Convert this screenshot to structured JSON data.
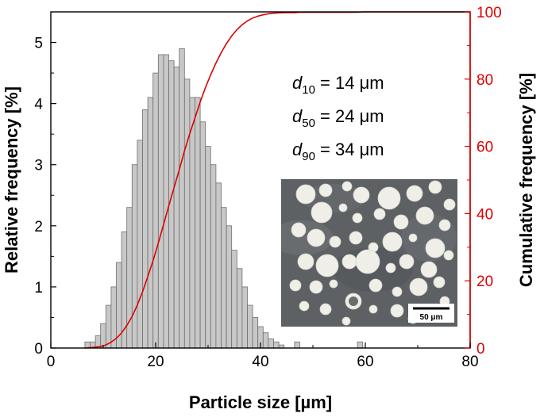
{
  "chart_data": {
    "type": "bar+line",
    "xlabel": "Particle size [µm]",
    "ylabel_left": "Relative frequency [%]",
    "ylabel_right": "Cumulative frequency [%]",
    "xlim": [
      0,
      80
    ],
    "ylim_left": [
      0,
      5.5
    ],
    "ylim_right": [
      0,
      100
    ],
    "x_ticks": [
      0,
      20,
      40,
      60,
      80
    ],
    "y_left_ticks": [
      0,
      1,
      2,
      3,
      4,
      5
    ],
    "y_right_ticks": [
      0,
      20,
      40,
      60,
      80,
      100
    ],
    "bin_width": 1,
    "histogram": {
      "bin_centers": [
        7,
        8,
        9,
        10,
        11,
        12,
        13,
        14,
        15,
        16,
        17,
        18,
        19,
        20,
        21,
        22,
        23,
        24,
        25,
        26,
        27,
        28,
        29,
        30,
        31,
        32,
        33,
        34,
        35,
        36,
        37,
        38,
        39,
        40,
        41,
        42,
        43,
        44,
        45,
        46,
        47,
        48,
        49,
        50,
        51,
        52,
        53,
        54,
        55,
        56,
        57,
        58,
        59
      ],
      "values": [
        0.1,
        0.1,
        0.2,
        0.4,
        0.7,
        1.0,
        1.4,
        1.9,
        2.3,
        3.0,
        3.4,
        3.9,
        4.1,
        4.5,
        4.8,
        4.8,
        4.7,
        4.6,
        4.9,
        4.4,
        4.1,
        4.1,
        3.7,
        3.3,
        3.0,
        2.7,
        2.3,
        2.0,
        1.6,
        1.3,
        1.0,
        0.7,
        0.5,
        0.35,
        0.25,
        0.15,
        0.1,
        0.05,
        0.0,
        0.0,
        0.1,
        0.0,
        0.0,
        0.0,
        0.0,
        0.0,
        0.0,
        0.0,
        0.0,
        0.0,
        0.0,
        0.0,
        0.1
      ]
    },
    "cumulative": {
      "color": "#dd0000"
    },
    "annotations": [
      {
        "symbol": "d",
        "sub": "10",
        "text": " = 14 μm"
      },
      {
        "symbol": "d",
        "sub": "50",
        "text": " = 24 μm"
      },
      {
        "symbol": "d",
        "sub": "90",
        "text": " = 34 μm"
      }
    ],
    "inset": {
      "type": "micrograph",
      "scalebar_label": "50 μm"
    },
    "colors": {
      "bars_fill": "#c8c8c8",
      "bars_stroke": "#6e6e6e",
      "right_axis": "#dd0000",
      "left_axis": "#000000"
    }
  }
}
